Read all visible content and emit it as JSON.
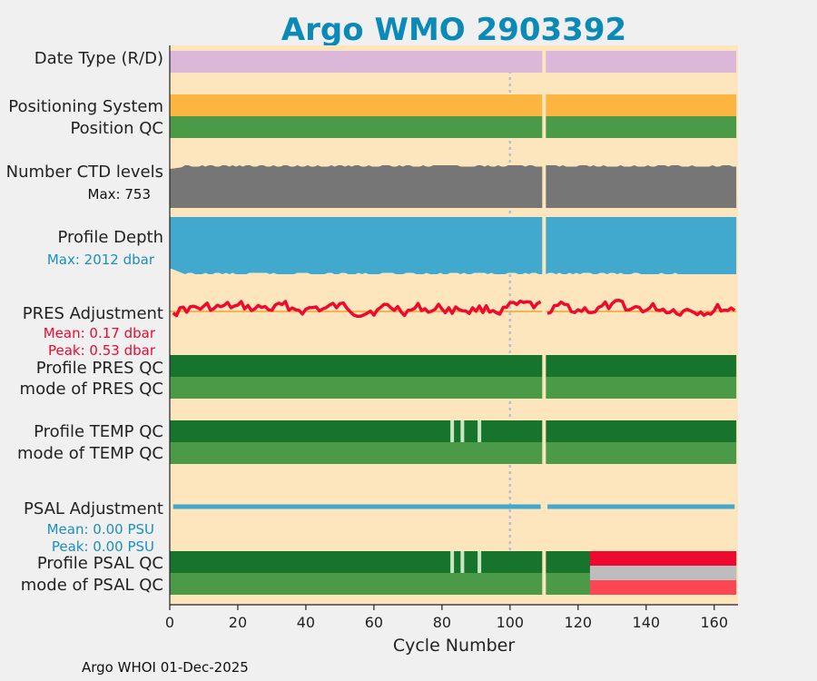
{
  "chart_data": {
    "type": "status-strip",
    "title": "Argo WMO 2903392",
    "xlabel": "Cycle Number",
    "xlim": [
      0,
      167
    ],
    "xticks": [
      0,
      20,
      40,
      60,
      80,
      100,
      120,
      140,
      160
    ],
    "last_cycle": 166,
    "gap_cycle": 110,
    "reference_cycle": 100,
    "rows": {
      "date_type": {
        "label": "Date Type (R/D)",
        "color": "#dbb7d9"
      },
      "positioning_system": {
        "label": "Positioning System",
        "color": "#fbb540"
      },
      "position_qc": {
        "label": "Position QC",
        "color": "#4b9a47"
      },
      "n_levels": {
        "label": "Number CTD levels",
        "annotation": "Max: 753",
        "color": "#767676"
      },
      "profile_depth": {
        "label": "Profile Depth",
        "annotation": "Max: 2012 dbar",
        "color": "#41a9cd"
      },
      "pres_adjustment": {
        "label": "PRES Adjustment",
        "mean": "Mean: 0.17 dbar",
        "peak": "Peak: 0.53 dbar",
        "color": "#ee0a2e"
      },
      "profile_pres_qc": {
        "label": "Profile PRES QC",
        "color": "#17742d"
      },
      "mode_pres_qc": {
        "label": "mode of PRES QC",
        "color": "#4b9a47"
      },
      "profile_temp_qc": {
        "label": "Profile TEMP QC",
        "color": "#17742d",
        "light_marks": [
          83,
          86,
          91
        ]
      },
      "mode_temp_qc": {
        "label": "mode of TEMP QC",
        "color": "#4b9a47"
      },
      "psal_adjustment": {
        "label": "PSAL Adjustment",
        "mean": "Mean: 0.00 PSU",
        "peak": "Peak: 0.00 PSU",
        "color": "#41a9cd"
      },
      "profile_psal_qc": {
        "label": "Profile PSAL QC",
        "color": "#17742d",
        "light_marks": [
          83,
          86,
          91
        ],
        "flag_from": 124,
        "flag_color": "#ee0a2e"
      },
      "mode_psal_qc": {
        "label": "mode of PSAL QC",
        "color": "#4b9a47",
        "flag_from": 124,
        "flag_colors": [
          "#bdbdbd",
          "#fd4653"
        ]
      }
    }
  },
  "footer": "Argo WHOI 01-Dec-2025"
}
